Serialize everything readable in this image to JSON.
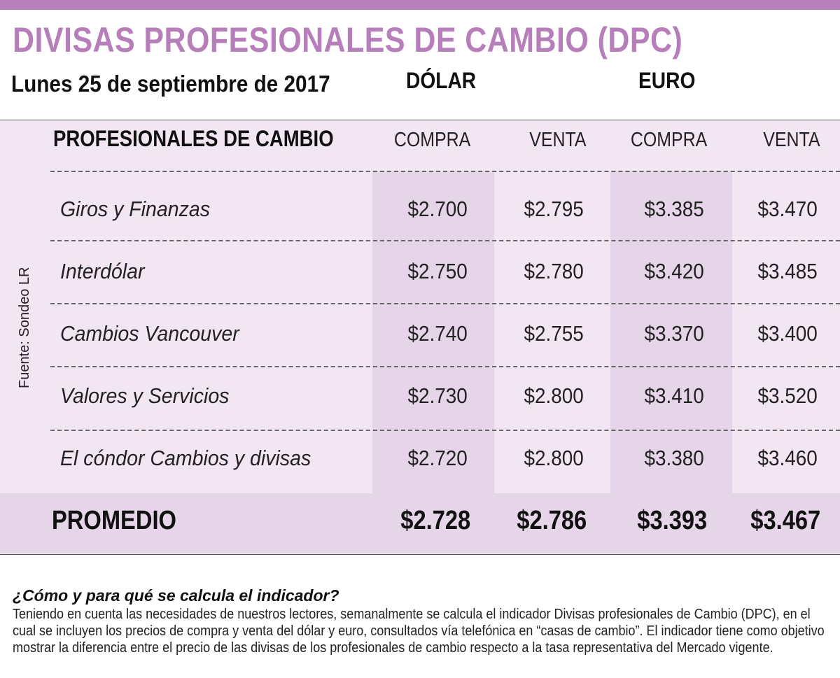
{
  "header": {
    "title": "DIVISAS PROFESIONALES DE CAMBIO (DPC)",
    "date": "Lunes 25 de septiembre de 2017",
    "currency_dolar": "DÓLAR",
    "currency_euro": "EURO"
  },
  "table": {
    "col_main": "PROFESIONALES DE CAMBIO",
    "col_dolar_compra": "COMPRA",
    "col_dolar_venta": "VENTA",
    "col_euro_compra": "COMPRA",
    "col_euro_venta": "VENTA",
    "rows": [
      {
        "name": "Giros y Finanzas",
        "dolar_compra": "$2.700",
        "dolar_venta": "$2.795",
        "euro_compra": "$3.385",
        "euro_venta": "$3.470"
      },
      {
        "name": "Interdólar",
        "dolar_compra": "$2.750",
        "dolar_venta": "$2.780",
        "euro_compra": "$3.420",
        "euro_venta": "$3.485"
      },
      {
        "name": "Cambios Vancouver",
        "dolar_compra": "$2.740",
        "dolar_venta": "$2.755",
        "euro_compra": "$3.370",
        "euro_venta": "$3.400"
      },
      {
        "name": "Valores y Servicios",
        "dolar_compra": "$2.730",
        "dolar_venta": "$2.800",
        "euro_compra": "$3.410",
        "euro_venta": "$3.520"
      },
      {
        "name": "El cóndor Cambios y divisas",
        "dolar_compra": "$2.720",
        "dolar_venta": "$2.800",
        "euro_compra": "$3.380",
        "euro_venta": "$3.460"
      }
    ],
    "average": {
      "label": "PROMEDIO",
      "dolar_compra": "$2.728",
      "dolar_venta": "$2.786",
      "euro_compra": "$3.393",
      "euro_venta": "$3.467"
    }
  },
  "source": "Fuente: Sondeo LR",
  "note": {
    "question": "¿Cómo y para qué se calcula el indicador?",
    "text": "Teniendo en cuenta las necesidades de nuestros lectores, semanalmente se calcula el indicador Divisas profesionales de Cambio (DPC), en el cual se incluyen los precios de compra y venta del dólar y euro, consultados vía telefónica en  “casas de cambio”. El indicador tiene como objetivo mostrar la diferencia entre el precio de las divisas de los profesionales de  cambio respecto a la tasa representativa del Mercado vigente."
  },
  "colors": {
    "accent": "#b77fba",
    "panel": "#f2e6f3",
    "band": "#e6d4e9"
  }
}
